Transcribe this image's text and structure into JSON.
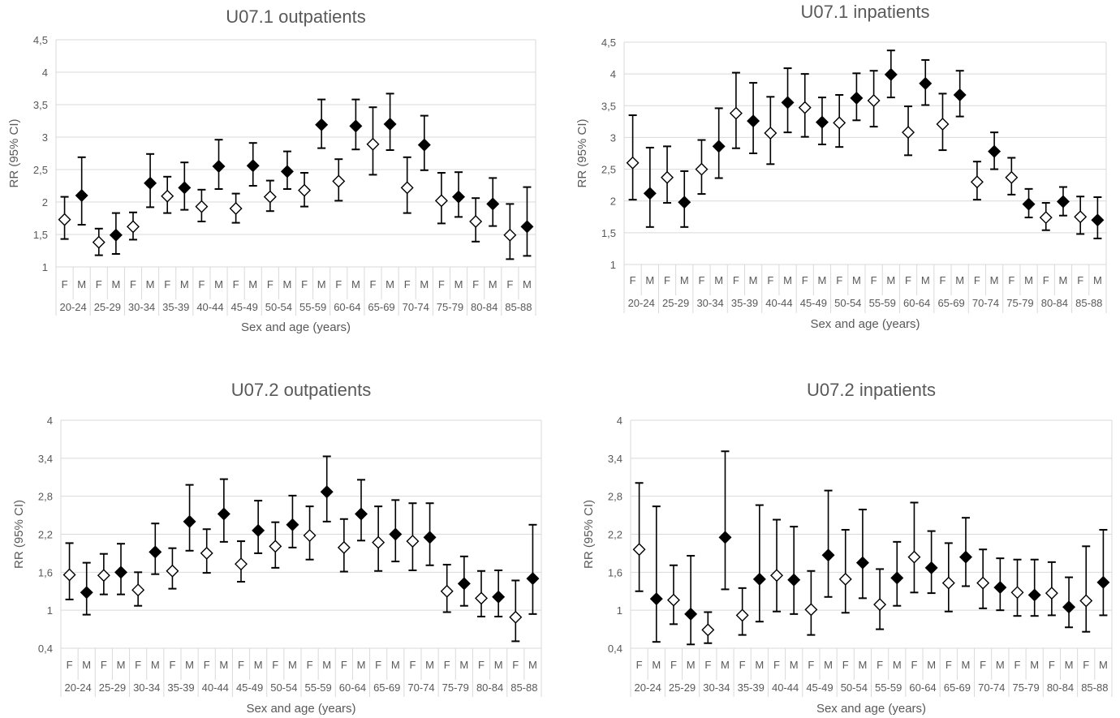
{
  "chart_data": [
    {
      "type": "scatter",
      "title": "U07.1 outpatients",
      "xlabel": "Sex and age (years)",
      "ylabel": "RR (95% CI)",
      "ylim": [
        1,
        4.5
      ],
      "yticks": [
        "1",
        "1,5",
        "2",
        "2,5",
        "3",
        "3,5",
        "4",
        "4,5"
      ],
      "sex_labels": [
        "F",
        "M"
      ],
      "age_groups": [
        "20-24",
        "25-29",
        "30-34",
        "35-39",
        "40-44",
        "45-49",
        "50-54",
        "55-59",
        "60-64",
        "65-69",
        "70-74",
        "75-79",
        "80-84",
        "85-88"
      ],
      "series": [
        {
          "marker": "open-diamond",
          "values": [
            1.73,
            1.38,
            1.62,
            2.09,
            1.93,
            1.9,
            2.08,
            2.18,
            2.32,
            2.89,
            2.22,
            2.02,
            1.7,
            1.49
          ],
          "lower": [
            1.43,
            1.18,
            1.42,
            1.83,
            1.7,
            1.68,
            1.86,
            1.93,
            2.02,
            2.42,
            1.83,
            1.67,
            1.39,
            1.12
          ],
          "upper": [
            2.08,
            1.59,
            1.84,
            2.39,
            2.19,
            2.13,
            2.33,
            2.45,
            2.66,
            3.46,
            2.69,
            2.45,
            2.06,
            1.97
          ]
        },
        {
          "marker": "filled-diamond",
          "values": [
            2.1,
            1.49,
            2.29,
            2.22,
            2.55,
            2.56,
            2.47,
            3.19,
            3.17,
            3.2,
            2.88,
            2.08,
            1.97,
            1.62
          ],
          "lower": [
            1.65,
            1.2,
            1.92,
            1.88,
            2.2,
            2.25,
            2.2,
            2.83,
            2.81,
            2.8,
            2.49,
            1.77,
            1.63,
            1.17
          ],
          "upper": [
            2.69,
            1.83,
            2.74,
            2.61,
            2.96,
            2.91,
            2.78,
            3.58,
            3.58,
            3.67,
            3.33,
            2.46,
            2.37,
            2.23
          ]
        }
      ]
    },
    {
      "type": "scatter",
      "title": "U07.1 inpatients",
      "xlabel": "Sex and age (years)",
      "ylabel": "RR (95% CI)",
      "ylim": [
        1,
        4.5
      ],
      "yticks": [
        "1",
        "1,5",
        "2",
        "2,5",
        "3",
        "3,5",
        "4",
        "4,5"
      ],
      "sex_labels": [
        "F",
        "M"
      ],
      "age_groups": [
        "20-24",
        "25-29",
        "30-34",
        "35-39",
        "40-44",
        "45-49",
        "50-54",
        "55-59",
        "60-64",
        "65-69",
        "70-74",
        "75-79",
        "80-84",
        "85-88"
      ],
      "series": [
        {
          "marker": "open-diamond",
          "values": [
            2.6,
            2.37,
            2.5,
            3.38,
            3.07,
            3.47,
            3.23,
            3.58,
            3.08,
            3.21,
            2.3,
            2.37,
            1.74,
            1.75
          ],
          "lower": [
            2.02,
            1.97,
            2.11,
            2.83,
            2.58,
            3.01,
            2.85,
            3.17,
            2.72,
            2.8,
            2.02,
            2.1,
            1.54,
            1.48
          ],
          "upper": [
            3.35,
            2.86,
            2.96,
            4.02,
            3.64,
            4.0,
            3.67,
            4.05,
            3.49,
            3.69,
            2.62,
            2.68,
            1.97,
            2.07
          ]
        },
        {
          "marker": "filled-diamond",
          "values": [
            2.12,
            1.98,
            2.86,
            3.26,
            3.55,
            3.24,
            3.62,
            3.99,
            3.85,
            3.67,
            2.78,
            1.95,
            1.99,
            1.7
          ],
          "lower": [
            1.59,
            1.59,
            2.36,
            2.75,
            3.08,
            2.89,
            3.27,
            3.63,
            3.51,
            3.33,
            2.5,
            1.74,
            1.77,
            1.41
          ],
          "upper": [
            2.84,
            2.47,
            3.46,
            3.86,
            4.09,
            3.63,
            4.01,
            4.37,
            4.22,
            4.05,
            3.08,
            2.19,
            2.22,
            2.06
          ]
        }
      ]
    },
    {
      "type": "scatter",
      "title": "U07.2 outpatients",
      "xlabel": "Sex and age (years)",
      "ylabel": "RR (95% CI)",
      "ylim": [
        0.4,
        4
      ],
      "yticks": [
        "0,4",
        "1",
        "1,6",
        "2,2",
        "2,8",
        "3,4",
        "4"
      ],
      "sex_labels": [
        "F",
        "M"
      ],
      "age_groups": [
        "20-24",
        "25-29",
        "30-34",
        "35-39",
        "40-44",
        "45-49",
        "50-54",
        "55-59",
        "60-64",
        "65-69",
        "70-74",
        "75-79",
        "80-84",
        "85-88"
      ],
      "series": [
        {
          "marker": "open-diamond",
          "values": [
            1.56,
            1.55,
            1.32,
            1.62,
            1.9,
            1.73,
            2.01,
            2.18,
            1.99,
            2.07,
            2.09,
            1.3,
            1.19,
            0.89
          ],
          "lower": [
            1.17,
            1.25,
            1.07,
            1.34,
            1.59,
            1.45,
            1.67,
            1.8,
            1.61,
            1.62,
            1.63,
            0.97,
            0.9,
            0.51
          ],
          "upper": [
            2.06,
            1.89,
            1.6,
            1.98,
            2.28,
            2.09,
            2.39,
            2.64,
            2.44,
            2.64,
            2.69,
            1.72,
            1.62,
            1.47
          ]
        },
        {
          "marker": "filled-diamond",
          "values": [
            1.28,
            1.6,
            1.92,
            2.4,
            2.52,
            2.26,
            2.35,
            2.87,
            2.52,
            2.2,
            2.15,
            1.42,
            1.21,
            1.5
          ],
          "lower": [
            0.93,
            1.25,
            1.57,
            1.94,
            2.08,
            1.9,
            1.99,
            2.4,
            2.1,
            1.77,
            1.71,
            1.07,
            0.9,
            0.94
          ],
          "upper": [
            1.75,
            2.05,
            2.37,
            2.98,
            3.07,
            2.73,
            2.81,
            3.43,
            3.06,
            2.74,
            2.69,
            1.85,
            1.63,
            2.35
          ]
        }
      ]
    },
    {
      "type": "scatter",
      "title": "U07.2 inpatients",
      "xlabel": "Sex and age (years)",
      "ylabel": "RR (95% CI)",
      "ylim": [
        0.4,
        4
      ],
      "yticks": [
        "0,4",
        "1",
        "1,6",
        "2,2",
        "2,8",
        "3,4",
        "4"
      ],
      "sex_labels": [
        "F",
        "M"
      ],
      "age_groups": [
        "20-24",
        "25-29",
        "30-34",
        "35-39",
        "40-44",
        "45-49",
        "50-54",
        "55-59",
        "60-64",
        "65-69",
        "70-74",
        "75-79",
        "80-84",
        "85-88"
      ],
      "series": [
        {
          "marker": "open-diamond",
          "values": [
            1.96,
            1.16,
            0.69,
            0.92,
            1.55,
            1.01,
            1.49,
            1.09,
            1.84,
            1.43,
            1.43,
            1.28,
            1.27,
            1.15
          ],
          "lower": [
            1.3,
            0.78,
            0.48,
            0.61,
            0.98,
            0.61,
            0.96,
            0.7,
            1.28,
            0.98,
            1.03,
            0.91,
            0.92,
            0.66
          ],
          "upper": [
            3.01,
            1.71,
            0.97,
            1.35,
            2.43,
            1.62,
            2.27,
            1.65,
            2.7,
            2.06,
            1.96,
            1.8,
            1.76,
            2.01
          ]
        },
        {
          "marker": "filled-diamond",
          "values": [
            1.18,
            0.94,
            2.15,
            1.49,
            1.48,
            1.87,
            1.75,
            1.51,
            1.67,
            1.84,
            1.36,
            1.24,
            1.05,
            1.44
          ],
          "lower": [
            0.5,
            0.46,
            1.33,
            0.82,
            0.94,
            1.21,
            1.19,
            1.07,
            1.27,
            1.38,
            1.0,
            0.91,
            0.73,
            0.92
          ],
          "upper": [
            2.64,
            1.86,
            3.51,
            2.66,
            2.32,
            2.89,
            2.59,
            2.08,
            2.25,
            2.46,
            1.82,
            1.8,
            1.52,
            2.27
          ]
        }
      ]
    }
  ]
}
